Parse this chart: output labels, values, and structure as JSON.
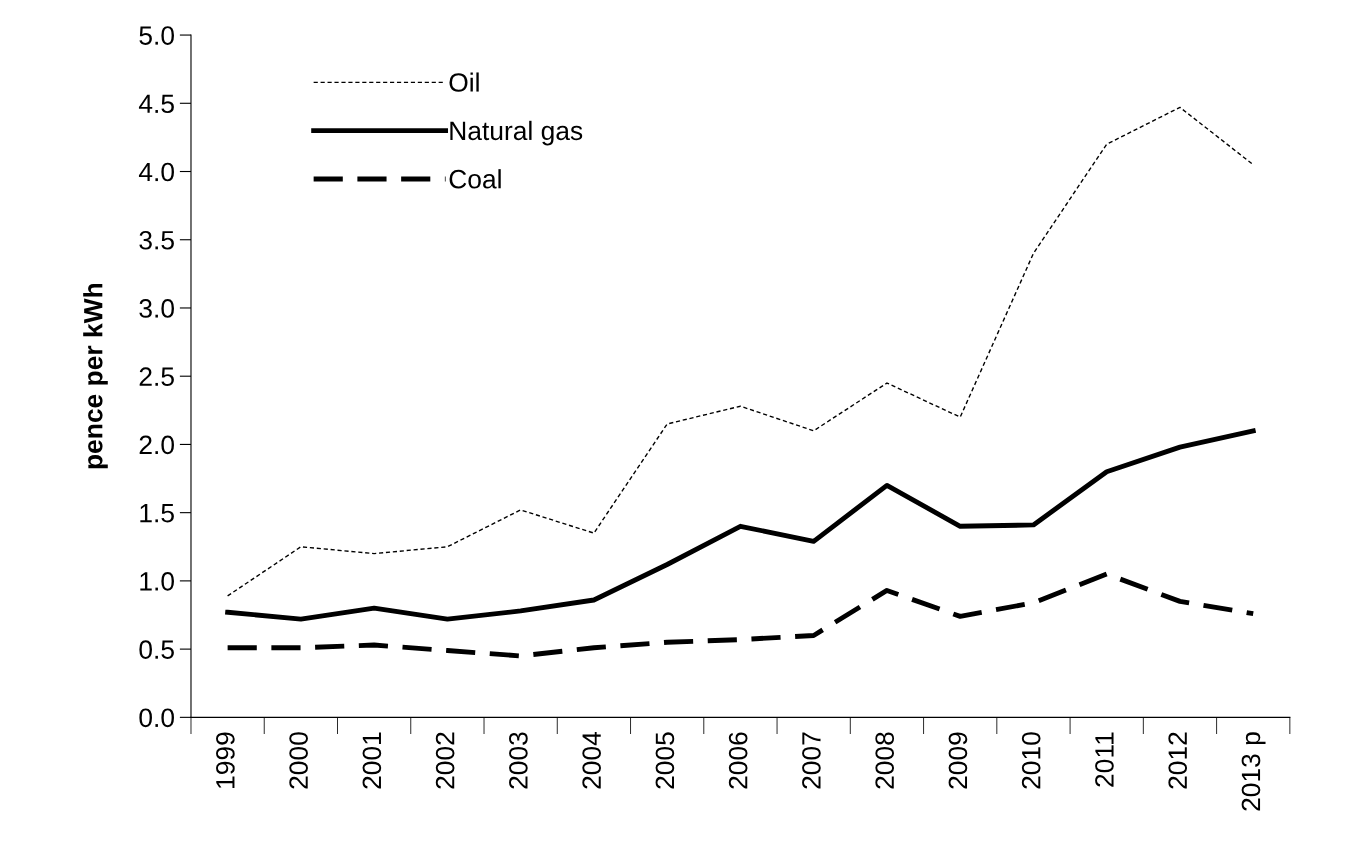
{
  "chart_data": {
    "type": "line",
    "ylabel": "pence per kWh",
    "categories": [
      "1999",
      "2000",
      "2001",
      "2002",
      "2003",
      "2004",
      "2005",
      "2006",
      "2007",
      "2008",
      "2009",
      "2010",
      "2011",
      "2012",
      "2013 p"
    ],
    "series": [
      {
        "name": "Oil",
        "color": "#000000",
        "line_style": "dotted",
        "values": [
          0.89,
          1.25,
          1.2,
          1.25,
          1.52,
          1.35,
          2.15,
          2.28,
          2.1,
          2.45,
          2.2,
          3.4,
          4.2,
          4.47,
          4.05
        ]
      },
      {
        "name": "Natural gas",
        "color": "#000000",
        "line_style": "solid",
        "values": [
          0.77,
          0.72,
          0.8,
          0.72,
          0.78,
          0.86,
          1.12,
          1.4,
          1.29,
          1.7,
          1.4,
          1.41,
          1.8,
          1.98,
          2.1
        ]
      },
      {
        "name": "Coal",
        "color": "#000000",
        "line_style": "dashed",
        "values": [
          0.51,
          0.51,
          0.53,
          0.49,
          0.45,
          0.51,
          0.55,
          0.57,
          0.6,
          0.93,
          0.74,
          0.84,
          1.05,
          0.85,
          0.76
        ]
      }
    ],
    "ylim": [
      0,
      5
    ],
    "yticks": [
      {
        "value": 0,
        "label": "0.0"
      },
      {
        "value": 0.5,
        "label": "0.5"
      },
      {
        "value": 1,
        "label": "1.0"
      },
      {
        "value": 1.5,
        "label": "1.5"
      },
      {
        "value": 2,
        "label": "2.0"
      },
      {
        "value": 2.5,
        "label": "2.5"
      },
      {
        "value": 3,
        "label": "3.0"
      },
      {
        "value": 3.5,
        "label": "3.5"
      },
      {
        "value": 4,
        "label": "4.0"
      },
      {
        "value": 4.5,
        "label": "4.5"
      },
      {
        "value": 5,
        "label": "5.0"
      }
    ],
    "grid": false,
    "legend": "top left",
    "marker": "none"
  }
}
